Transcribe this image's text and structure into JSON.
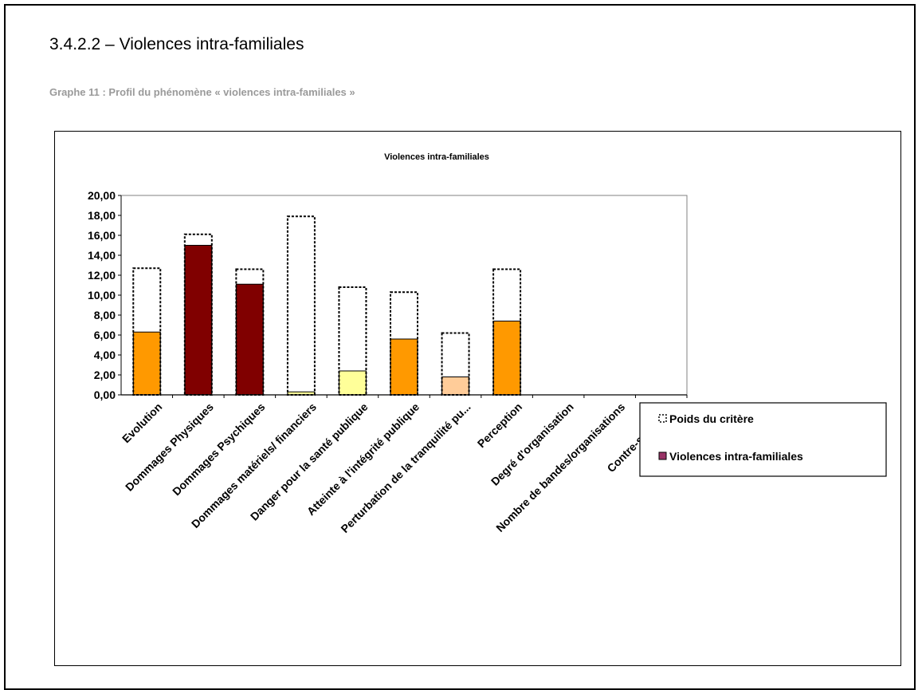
{
  "heading": "3.4.2.2 – Violences intra-familiales",
  "caption": "Graphe 11 : Profil du phénomène « violences intra-familiales »",
  "chart_data": {
    "type": "bar",
    "title": "Violences intra-familiales",
    "categories": [
      "Evolution",
      "Dommages Physiques",
      "Dommages Psychiques",
      "Dommages matériels/ financiers",
      "Danger pour la santé publique",
      "Atteinte à l'intégrité publique",
      "Perturbation de la tranquilité pu...",
      "Perception",
      "Degré d'organisation",
      "Nombre de bandes/organisations",
      "Contre-stratégies"
    ],
    "series": [
      {
        "name": "Poids du critère",
        "values": [
          12.7,
          16.1,
          12.6,
          17.9,
          10.8,
          10.3,
          6.2,
          12.6,
          0,
          0,
          0
        ],
        "style": "dashed-outline"
      },
      {
        "name": "Violences intra-familiales",
        "values": [
          6.3,
          15.0,
          11.1,
          0.3,
          2.4,
          5.6,
          1.8,
          7.4,
          0,
          0,
          0
        ],
        "colors": [
          "#ff9900",
          "#800000",
          "#800000",
          "#ffff99",
          "#ffff99",
          "#ff9900",
          "#ffcc99",
          "#ff9900",
          "#ff9900",
          "#ff9900",
          "#ff9900"
        ]
      }
    ],
    "yticks": [
      "0,00",
      "2,00",
      "4,00",
      "6,00",
      "8,00",
      "10,00",
      "12,00",
      "14,00",
      "16,00",
      "18,00",
      "20,00"
    ],
    "ylim": [
      0,
      20
    ],
    "legend_position": "right",
    "legend_swatch_color": "#993366"
  }
}
